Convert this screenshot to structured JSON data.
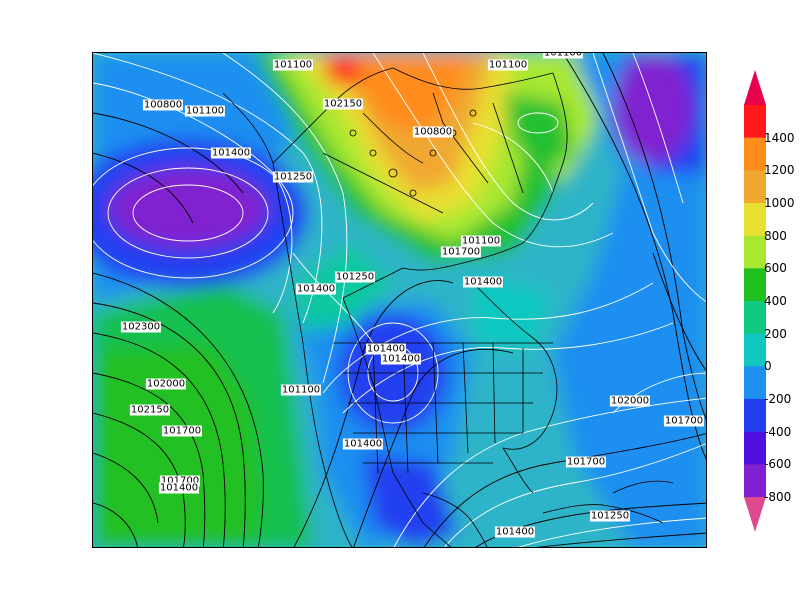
{
  "colorbar": {
    "levels": [
      "1400",
      "1200",
      "1000",
      "800",
      "600",
      "400",
      "200",
      "0",
      "-200",
      "-400",
      "-600",
      "-800"
    ],
    "colors": [
      "#e8004a",
      "#ff1a1a",
      "#ff8c1a",
      "#f0a830",
      "#e8e030",
      "#a8e830",
      "#20c020",
      "#10c880",
      "#10c8c0",
      "#2090f0",
      "#2040f0",
      "#5010e0",
      "#8020d0",
      "#e04890"
    ]
  },
  "labels": [
    {
      "text": "101100"
    },
    {
      "text": "101100"
    },
    {
      "text": "101100"
    },
    {
      "text": "100800"
    },
    {
      "text": "101100"
    },
    {
      "text": "102150"
    },
    {
      "text": "100800"
    },
    {
      "text": "101400"
    },
    {
      "text": "101250"
    },
    {
      "text": "101100"
    },
    {
      "text": "101700"
    },
    {
      "text": "101250"
    },
    {
      "text": "101400"
    },
    {
      "text": "101400"
    },
    {
      "text": "102300"
    },
    {
      "text": "101400"
    },
    {
      "text": "101400"
    },
    {
      "text": "101100"
    },
    {
      "text": "102000"
    },
    {
      "text": "102150"
    },
    {
      "text": "101700"
    },
    {
      "text": "101400"
    },
    {
      "text": "101700"
    },
    {
      "text": "101400"
    },
    {
      "text": "102000"
    },
    {
      "text": "101700"
    },
    {
      "text": "101700"
    },
    {
      "text": "101250"
    },
    {
      "text": "101400"
    }
  ]
}
